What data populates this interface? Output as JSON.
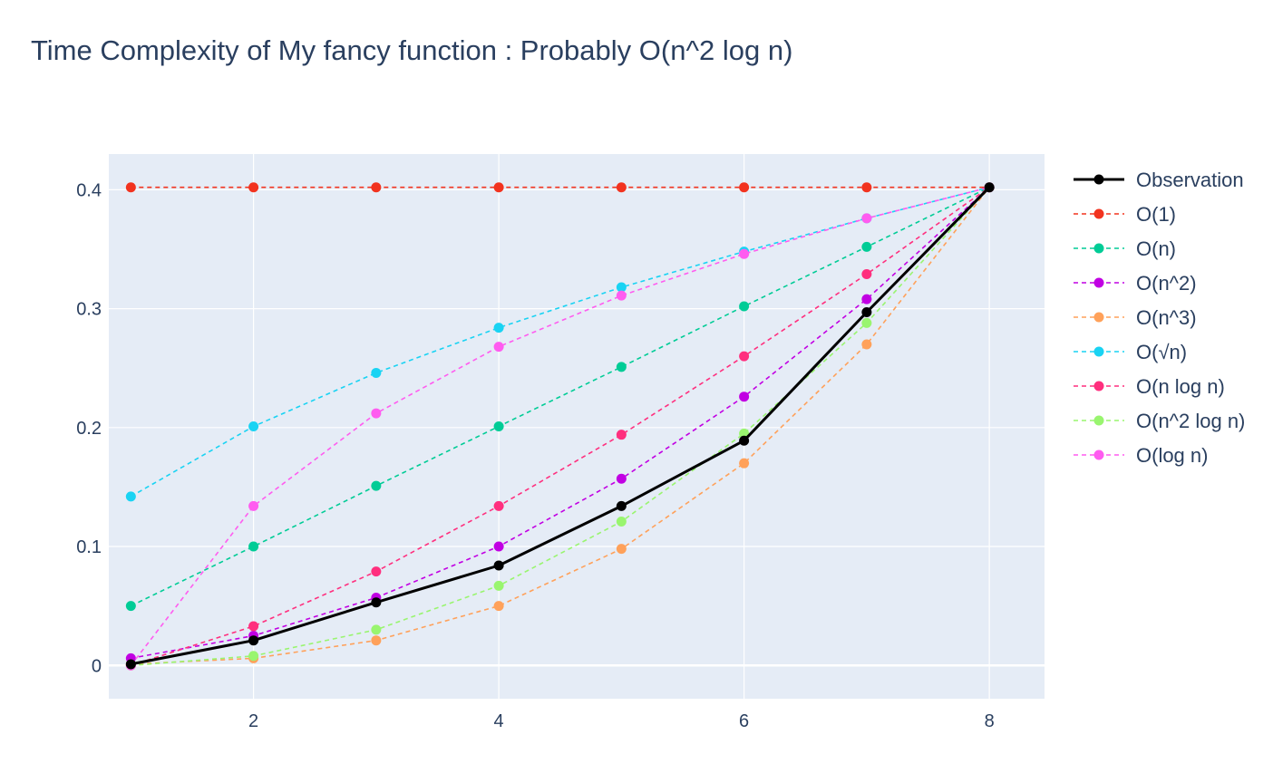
{
  "chart_data": {
    "type": "line",
    "title": "Time Complexity of My fancy function : Probably O(n^2 log n)",
    "xlabel": "",
    "ylabel": "",
    "x": [
      1,
      2,
      3,
      4,
      5,
      6,
      7,
      8
    ],
    "xlim": [
      0.82,
      8.45
    ],
    "ylim": [
      -0.028,
      0.43
    ],
    "xticks": [
      2,
      4,
      6,
      8
    ],
    "yticks": [
      0,
      0.1,
      0.2,
      0.3,
      0.4
    ],
    "ytick_labels": [
      "0",
      "0.1",
      "0.2",
      "0.3",
      "0.4"
    ],
    "grid": true,
    "plot_background": "#e5ecf6",
    "legend_position": "right",
    "series": [
      {
        "name": "Observation",
        "color": "#000000",
        "dash": "solid",
        "values": [
          0.001,
          0.021,
          0.053,
          0.084,
          0.134,
          0.189,
          0.297,
          0.402
        ]
      },
      {
        "name": "O(1)",
        "color": "#f2331f",
        "dash": "dashed",
        "values": [
          0.402,
          0.402,
          0.402,
          0.402,
          0.402,
          0.402,
          0.402,
          0.402
        ]
      },
      {
        "name": "O(n)",
        "color": "#00cc96",
        "dash": "dashed",
        "values": [
          0.05,
          0.1,
          0.151,
          0.201,
          0.251,
          0.302,
          0.352,
          0.402
        ]
      },
      {
        "name": "O(n^2)",
        "color": "#c100e3",
        "dash": "dashed",
        "values": [
          0.006,
          0.025,
          0.057,
          0.1,
          0.157,
          0.226,
          0.308,
          0.402
        ]
      },
      {
        "name": "O(n^3)",
        "color": "#ffa15a",
        "dash": "dashed",
        "values": [
          0.001,
          0.006,
          0.021,
          0.05,
          0.098,
          0.17,
          0.27,
          0.402
        ]
      },
      {
        "name": "O(√n)",
        "color": "#19d3f3",
        "dash": "dashed",
        "values": [
          0.142,
          0.201,
          0.246,
          0.284,
          0.318,
          0.348,
          0.376,
          0.402
        ]
      },
      {
        "name": "O(n log n)",
        "color": "#ff2f7e",
        "dash": "dashed",
        "values": [
          0.0,
          0.033,
          0.079,
          0.134,
          0.194,
          0.26,
          0.329,
          0.402
        ]
      },
      {
        "name": "O(n^2 log n)",
        "color": "#99f56f",
        "dash": "dashed",
        "values": [
          0.0,
          0.008,
          0.03,
          0.067,
          0.121,
          0.195,
          0.288,
          0.402
        ]
      },
      {
        "name": "O(log n)",
        "color": "#ff5cf0",
        "dash": "dashed",
        "values": [
          0.0,
          0.134,
          0.212,
          0.268,
          0.311,
          0.346,
          0.376,
          0.402
        ]
      }
    ]
  }
}
